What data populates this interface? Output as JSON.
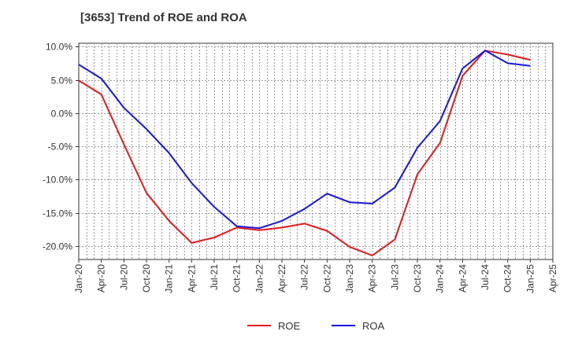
{
  "chart_data": {
    "type": "line",
    "title": "[3653]  Trend of ROE and ROA",
    "xlabel": "",
    "ylabel": "",
    "x_ticks": [
      "Jan-20",
      "Apr-20",
      "Jul-20",
      "Oct-20",
      "Jan-21",
      "Apr-21",
      "Jul-21",
      "Oct-21",
      "Jan-22",
      "Apr-22",
      "Jul-22",
      "Oct-22",
      "Jan-23",
      "Apr-23",
      "Jul-23",
      "Oct-23",
      "Jan-24",
      "Apr-24",
      "Jul-24",
      "Oct-24",
      "Jan-25",
      "Apr-25"
    ],
    "y_ticks": [
      "10.0%",
      "5.0%",
      "0.0%",
      "-5.0%",
      "-10.0%",
      "-15.0%",
      "-20.0%"
    ],
    "y_tick_values": [
      10,
      5,
      0,
      -5,
      -10,
      -15,
      -20
    ],
    "ylim": [
      -22,
      10.5
    ],
    "unit": "%",
    "grid": true,
    "legend_position": "bottom",
    "series": [
      {
        "name": "ROE",
        "color": "#e8191c",
        "x": [
          "Jan-20",
          "Apr-20",
          "Jul-20",
          "Oct-20",
          "Jan-21",
          "Apr-21",
          "Jul-21",
          "Oct-21",
          "Jan-22",
          "Apr-22",
          "Jul-22",
          "Oct-22",
          "Jan-23",
          "Apr-23",
          "Jul-23",
          "Oct-23",
          "Jan-24",
          "Apr-24",
          "Jul-24",
          "Oct-24",
          "Jan-25"
        ],
        "values": [
          4.9,
          2.8,
          -4.7,
          -12.0,
          -16.2,
          -19.5,
          -18.7,
          -17.2,
          -17.6,
          -17.2,
          -16.6,
          -17.7,
          -20.1,
          -21.4,
          -19.0,
          -9.2,
          -4.5,
          5.6,
          9.4,
          8.8,
          8.0
        ]
      },
      {
        "name": "ROA",
        "color": "#1616e0",
        "x": [
          "Jan-20",
          "Apr-20",
          "Jul-20",
          "Oct-20",
          "Jan-21",
          "Apr-21",
          "Jul-21",
          "Oct-21",
          "Jan-22",
          "Apr-22",
          "Jul-22",
          "Oct-22",
          "Jan-23",
          "Apr-23",
          "Jul-23",
          "Oct-23",
          "Jan-24",
          "Apr-24",
          "Jul-24",
          "Oct-24",
          "Jan-25"
        ],
        "values": [
          7.3,
          5.2,
          0.8,
          -2.4,
          -6.0,
          -10.5,
          -14.1,
          -17.0,
          -17.3,
          -16.2,
          -14.4,
          -12.1,
          -13.4,
          -13.6,
          -11.2,
          -5.2,
          -1.2,
          6.7,
          9.4,
          7.5,
          7.1
        ]
      }
    ]
  }
}
